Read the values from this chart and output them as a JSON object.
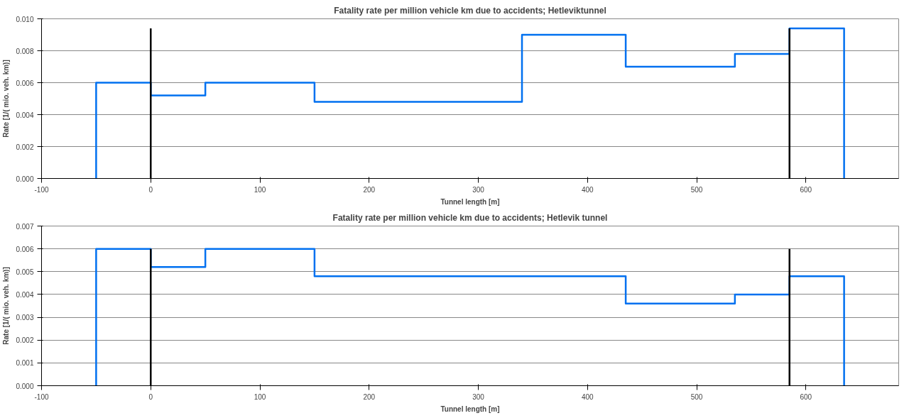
{
  "chart_data": [
    {
      "type": "step",
      "title": "Fatality rate per million vehicle km due to accidents; Hetleviktunnel",
      "xlabel": "Tunnel length [m]",
      "ylabel": "Rate [1/( mio. veh. km)]",
      "xlim": [
        -100,
        685
      ],
      "xticks": [
        -100,
        0,
        100,
        200,
        300,
        400,
        500,
        600
      ],
      "ylim": [
        0,
        0.01
      ],
      "yticks": [
        {
          "value": 0,
          "label": "0.000"
        },
        {
          "value": 0.002,
          "label": "0.002"
        },
        {
          "value": 0.004,
          "label": "0.004"
        },
        {
          "value": 0.006,
          "label": "0.006"
        },
        {
          "value": 0.008,
          "label": "0.008"
        },
        {
          "value": 0.01,
          "label": "0.010"
        }
      ],
      "grid": "y",
      "series": [
        {
          "color": "#0070f0",
          "x": [
            -50,
            -50,
            0,
            50,
            150,
            340,
            435,
            535,
            585,
            635
          ],
          "values": [
            0,
            0.006,
            0.0052,
            0.006,
            0.0048,
            0.009,
            0.007,
            0.0078,
            0.0094,
            0
          ]
        },
        {
          "type": "line",
          "color": "#000000",
          "x": [
            0,
            0
          ],
          "values": [
            0,
            0.0094
          ]
        },
        {
          "type": "line",
          "color": "#000000",
          "x": [
            585,
            585
          ],
          "values": [
            0,
            0.0094
          ]
        }
      ]
    },
    {
      "type": "step",
      "title": "Fatality rate per million vehicle km due to accidents; Hetlevik tunnel",
      "xlabel": "Tunnel length [m]",
      "ylabel": "Rate [1/( mio. veh. km)]",
      "xlim": [
        -100,
        685
      ],
      "xticks": [
        -100,
        0,
        100,
        200,
        300,
        400,
        500,
        600
      ],
      "ylim": [
        0,
        0.007
      ],
      "yticks": [
        {
          "value": 0,
          "label": "0.000"
        },
        {
          "value": 0.001,
          "label": "0.001"
        },
        {
          "value": 0.002,
          "label": "0.002"
        },
        {
          "value": 0.003,
          "label": "0.003"
        },
        {
          "value": 0.004,
          "label": "0.004"
        },
        {
          "value": 0.005,
          "label": "0.005"
        },
        {
          "value": 0.006,
          "label": "0.006"
        },
        {
          "value": 0.007,
          "label": "0.007"
        }
      ],
      "grid": "y",
      "series": [
        {
          "color": "#0070f0",
          "x": [
            -50,
            -50,
            0,
            50,
            150,
            435,
            535,
            585,
            635
          ],
          "values": [
            0,
            0.006,
            0.0052,
            0.006,
            0.0048,
            0.0036,
            0.004,
            0.0048,
            0
          ]
        },
        {
          "type": "line",
          "color": "#000000",
          "x": [
            0,
            0
          ],
          "values": [
            0,
            0.006
          ]
        },
        {
          "type": "line",
          "color": "#000000",
          "x": [
            585,
            585
          ],
          "values": [
            0,
            0.006
          ]
        }
      ]
    }
  ]
}
